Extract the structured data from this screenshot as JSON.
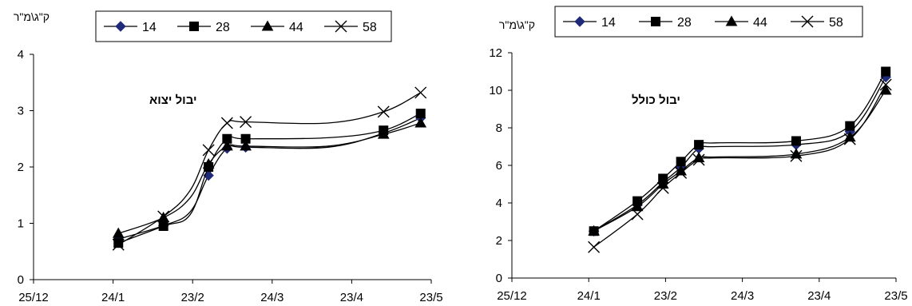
{
  "chart_data": [
    {
      "type": "line",
      "title": "יבול יצוא",
      "ylabel": "ק\"ג\\מ\"ר",
      "xlabel": "",
      "x_ticks": [
        "25/12",
        "24/1",
        "23/2",
        "24/3",
        "23/4",
        "23/5"
      ],
      "x_tick_days": [
        0,
        30,
        60,
        90,
        120,
        150
      ],
      "y_ticks": [
        "0",
        "1",
        "2",
        "3",
        "4"
      ],
      "ylim": [
        0,
        4
      ],
      "xlim_days": [
        0,
        150
      ],
      "x": [
        "26/1",
        "12/2",
        "22/2",
        "1/3",
        "8/3",
        "15/3",
        "15/4",
        "6/5",
        "20/5"
      ],
      "x_days": [
        32,
        49,
        59,
        66,
        73,
        80,
        111,
        132,
        146
      ],
      "marker_indices": [
        0,
        1,
        3,
        4,
        5,
        7,
        8
      ],
      "legend_position": "top",
      "series": [
        {
          "name": "14",
          "marker": "diamond",
          "color": "#1f2a78",
          "values": [
            0.72,
            0.96,
            1.2,
            1.85,
            2.33,
            2.35,
            2.35,
            2.6,
            2.87
          ]
        },
        {
          "name": "28",
          "marker": "square",
          "color": "#000000",
          "values": [
            0.65,
            0.95,
            1.15,
            2.0,
            2.5,
            2.5,
            2.52,
            2.65,
            2.95
          ]
        },
        {
          "name": "44",
          "marker": "triangle",
          "color": "#000000",
          "values": [
            0.82,
            1.1,
            1.45,
            2.05,
            2.37,
            2.37,
            2.37,
            2.58,
            2.78
          ]
        },
        {
          "name": "58",
          "marker": "x",
          "color": "#000000",
          "values": [
            0.62,
            1.12,
            1.58,
            2.3,
            2.78,
            2.8,
            2.78,
            2.98,
            3.32
          ]
        }
      ]
    },
    {
      "type": "line",
      "title": "יבול כולל",
      "ylabel": "ק\"ג\\מ\"ר",
      "xlabel": "",
      "x_ticks": [
        "25/12",
        "24/1",
        "23/2",
        "24/3",
        "23/4",
        "23/5"
      ],
      "x_tick_days": [
        0,
        30,
        60,
        90,
        120,
        150
      ],
      "y_ticks": [
        "0",
        "2",
        "4",
        "6",
        "8",
        "10",
        "12"
      ],
      "ylim": [
        0,
        12
      ],
      "xlim_days": [
        0,
        150
      ],
      "x": [
        "26/1",
        "12/2",
        "22/2",
        "1/3",
        "8/3",
        "15/3",
        "15/4",
        "6/5",
        "20/5"
      ],
      "x_days": [
        32,
        49,
        59,
        66,
        73,
        80,
        111,
        132,
        146
      ],
      "marker_indices": [
        0,
        1,
        2,
        3,
        4,
        6,
        7,
        8
      ],
      "legend_position": "top",
      "series": [
        {
          "name": "14",
          "marker": "diamond",
          "color": "#1f2a78",
          "values": [
            2.5,
            3.9,
            5.1,
            5.9,
            6.9,
            7.0,
            7.1,
            7.8,
            10.7
          ]
        },
        {
          "name": "28",
          "marker": "square",
          "color": "#000000",
          "values": [
            2.5,
            4.1,
            5.3,
            6.2,
            7.1,
            7.2,
            7.3,
            8.1,
            11.0
          ]
        },
        {
          "name": "44",
          "marker": "triangle",
          "color": "#000000",
          "values": [
            2.5,
            3.8,
            5.0,
            5.7,
            6.4,
            6.45,
            6.6,
            7.5,
            10.0
          ]
        },
        {
          "name": "58",
          "marker": "x",
          "color": "#000000",
          "values": [
            1.65,
            3.4,
            4.8,
            5.6,
            6.3,
            6.4,
            6.5,
            7.4,
            10.3
          ]
        }
      ]
    }
  ]
}
